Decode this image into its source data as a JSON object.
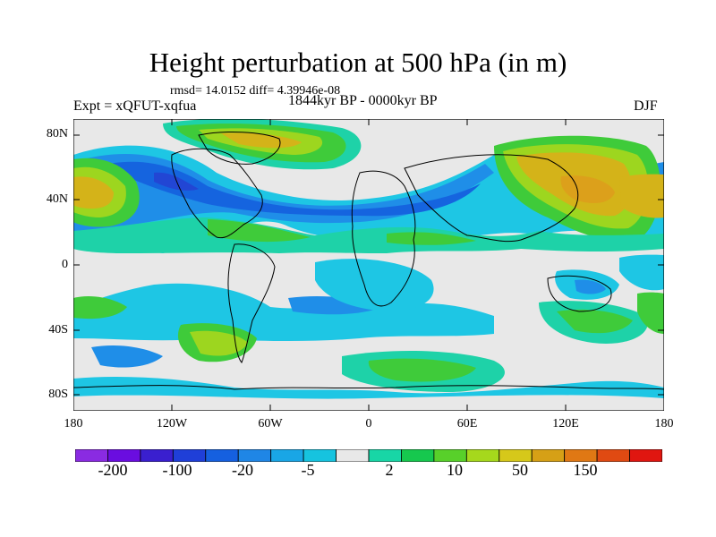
{
  "title": "Height perturbation at 500 hPa (in m)",
  "stats": "rmsd= 14.0152 diff= 4.39946e-08",
  "experiment": "Expt = xQFUT-xqfua",
  "period": "1844kyr BP - 0000kyr BP",
  "season": "DJF",
  "lat_ticks": [
    "80N",
    "40N",
    "0",
    "40S",
    "80S"
  ],
  "lon_ticks": [
    "180",
    "120W",
    "60W",
    "0",
    "60E",
    "120E",
    "180"
  ],
  "colorbar": {
    "labels": [
      "-200",
      "-100",
      "-20",
      "-5",
      "2",
      "10",
      "50",
      "150"
    ],
    "colors": [
      "#8a2be2",
      "#6a0de0",
      "#3a1fcf",
      "#1f3fd8",
      "#1560e0",
      "#1f86e6",
      "#19a6e6",
      "#16c3df",
      "#e8e8e8",
      "#18d6a6",
      "#16c84e",
      "#58d02a",
      "#a6d81c",
      "#d6c81a",
      "#d6a016",
      "#e07814",
      "#e04a12",
      "#e01610"
    ]
  },
  "field_colors": {
    "neutral": "#e8e8e8",
    "pos_weak": "#1ed2a8",
    "pos_moderate": "#3fcb3a",
    "pos_strong": "#9dd61f",
    "pos_very_strong": "#d4b319",
    "pos_extreme": "#dca01b",
    "neg_weak": "#1ec6e4",
    "neg_moderate": "#1f8ee8",
    "neg_strong": "#1564df",
    "neg_very_strong": "#2246d4"
  }
}
